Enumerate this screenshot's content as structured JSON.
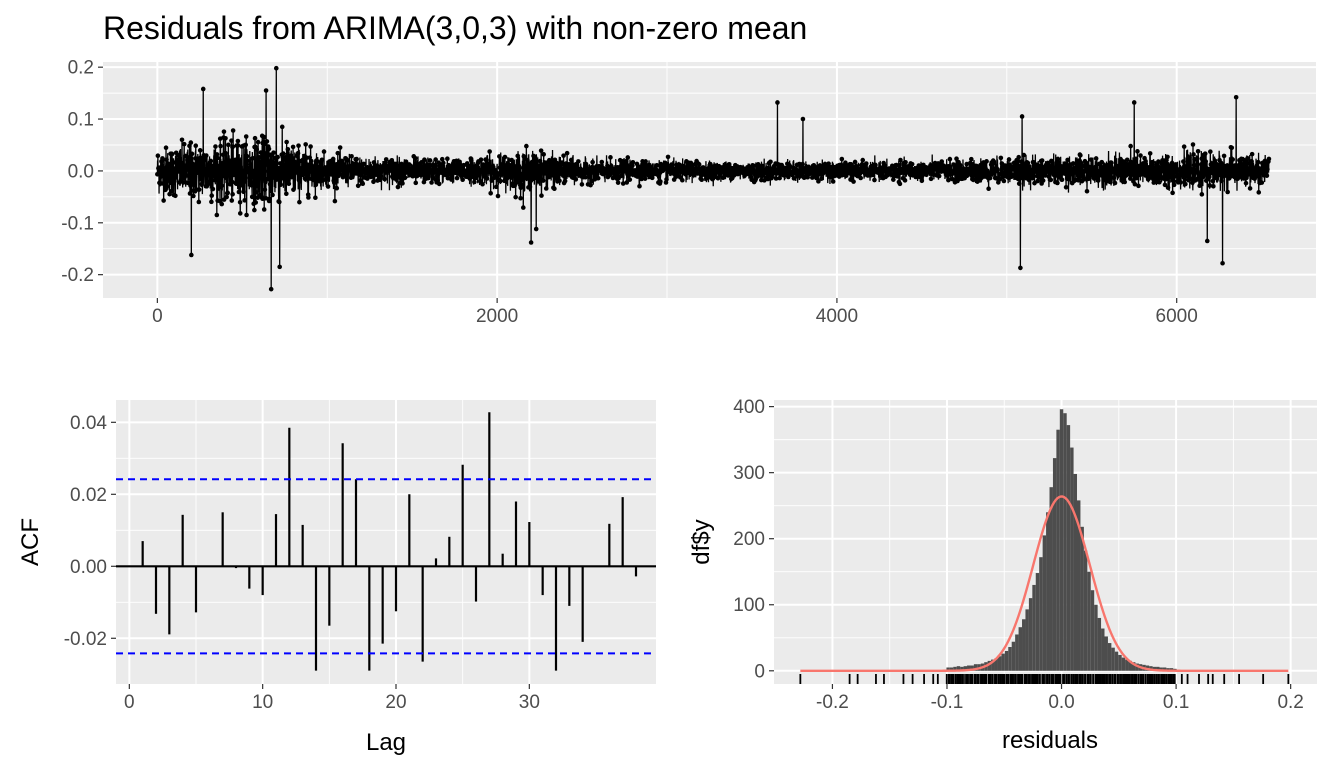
{
  "colors": {
    "panel_bg": "#ebebeb",
    "grid": "#ffffff",
    "series": "#000000",
    "ci_line": "#0000ff",
    "density_curve": "#f8766d",
    "histogram": "#4d4d4d"
  },
  "chart_data": [
    {
      "type": "line",
      "title": "Residuals from ARIMA(3,0,3) with non-zero mean",
      "xlabel": "",
      "ylabel": "",
      "xlim": [
        -320,
        6820
      ],
      "ylim": [
        -0.245,
        0.21
      ],
      "x_ticks": [
        0,
        2000,
        4000,
        6000
      ],
      "x_tick_labels": [
        "0",
        "2000",
        "4000",
        "6000"
      ],
      "y_ticks": [
        -0.2,
        -0.1,
        0.0,
        0.1,
        0.2
      ],
      "y_tick_labels": [
        "-0.2",
        "-0.1",
        "0.0",
        "0.1",
        "0.2"
      ],
      "n_obs": 6545,
      "points_markers": true,
      "volatility_envelope": [
        {
          "x": 0,
          "amp": 0.05
        },
        {
          "x": 300,
          "amp": 0.065
        },
        {
          "x": 700,
          "amp": 0.07
        },
        {
          "x": 1000,
          "amp": 0.035
        },
        {
          "x": 1800,
          "amp": 0.025
        },
        {
          "x": 2150,
          "amp": 0.045
        },
        {
          "x": 2500,
          "amp": 0.025
        },
        {
          "x": 3500,
          "amp": 0.02
        },
        {
          "x": 4500,
          "amp": 0.02
        },
        {
          "x": 5100,
          "amp": 0.03
        },
        {
          "x": 5800,
          "amp": 0.035
        },
        {
          "x": 6300,
          "amp": 0.04
        },
        {
          "x": 6545,
          "amp": 0.03
        }
      ],
      "notable_values": [
        {
          "x": 670,
          "y": -0.228
        },
        {
          "x": 700,
          "y": 0.198
        },
        {
          "x": 640,
          "y": 0.155
        },
        {
          "x": 720,
          "y": -0.185
        },
        {
          "x": 270,
          "y": 0.158
        },
        {
          "x": 200,
          "y": -0.162
        },
        {
          "x": 2200,
          "y": -0.138
        },
        {
          "x": 2230,
          "y": -0.112
        },
        {
          "x": 3650,
          "y": 0.132
        },
        {
          "x": 3800,
          "y": 0.1
        },
        {
          "x": 5080,
          "y": -0.187
        },
        {
          "x": 5090,
          "y": 0.105
        },
        {
          "x": 5750,
          "y": 0.132
        },
        {
          "x": 6270,
          "y": -0.178
        },
        {
          "x": 6350,
          "y": 0.142
        },
        {
          "x": 6180,
          "y": -0.135
        }
      ]
    },
    {
      "type": "bar",
      "subtype": "acf",
      "xlabel": "Lag",
      "ylabel": "ACF",
      "xlim": [
        -1,
        39.5
      ],
      "ylim": [
        -0.0327,
        0.0462
      ],
      "x_ticks": [
        0,
        10,
        20,
        30
      ],
      "x_tick_labels": [
        "0",
        "10",
        "20",
        "30"
      ],
      "y_ticks": [
        -0.02,
        0.0,
        0.02,
        0.04
      ],
      "y_tick_labels": [
        "-0.02",
        "0.00",
        "0.02",
        "0.04"
      ],
      "ci": 0.0242,
      "lags": [
        1,
        2,
        3,
        4,
        5,
        6,
        7,
        8,
        9,
        10,
        11,
        12,
        13,
        14,
        15,
        16,
        17,
        18,
        19,
        20,
        21,
        22,
        23,
        24,
        25,
        26,
        27,
        28,
        29,
        30,
        31,
        32,
        33,
        34,
        35,
        36,
        37,
        38
      ],
      "values": [
        0.007,
        -0.0132,
        -0.0189,
        0.0143,
        -0.0128,
        0.0002,
        0.015,
        -0.0005,
        -0.0062,
        -0.008,
        0.0145,
        0.0385,
        0.0115,
        -0.029,
        -0.0165,
        0.0342,
        0.0242,
        -0.029,
        -0.0215,
        -0.0125,
        0.02,
        -0.0265,
        0.0022,
        0.0082,
        0.0282,
        -0.0098,
        0.0428,
        0.0035,
        0.018,
        0.0123,
        -0.008,
        -0.029,
        -0.011,
        -0.021,
        0.0002,
        0.0118,
        0.0192,
        -0.0028
      ]
    },
    {
      "type": "bar",
      "subtype": "histogram",
      "xlabel": "residuals",
      "ylabel": "df$y",
      "xlim": [
        -0.251,
        0.223
      ],
      "ylim": [
        -20,
        410
      ],
      "x_ticks": [
        -0.2,
        -0.1,
        0.0,
        0.1,
        0.2
      ],
      "x_tick_labels": [
        "-0.2",
        "-0.1",
        "0.0",
        "0.1",
        "0.2"
      ],
      "y_ticks": [
        0,
        100,
        200,
        300,
        400
      ],
      "y_tick_labels": [
        "0",
        "100",
        "200",
        "300",
        "400"
      ],
      "bin_width": 0.003,
      "bins": [
        {
          "x": -0.099,
          "y": 5
        },
        {
          "x": -0.096,
          "y": 5
        },
        {
          "x": -0.093,
          "y": 6
        },
        {
          "x": -0.09,
          "y": 7
        },
        {
          "x": -0.087,
          "y": 6
        },
        {
          "x": -0.084,
          "y": 7
        },
        {
          "x": -0.081,
          "y": 8
        },
        {
          "x": -0.078,
          "y": 8
        },
        {
          "x": -0.075,
          "y": 10
        },
        {
          "x": -0.072,
          "y": 10
        },
        {
          "x": -0.069,
          "y": 11
        },
        {
          "x": -0.066,
          "y": 13
        },
        {
          "x": -0.063,
          "y": 15
        },
        {
          "x": -0.06,
          "y": 17
        },
        {
          "x": -0.057,
          "y": 19
        },
        {
          "x": -0.054,
          "y": 22
        },
        {
          "x": -0.051,
          "y": 26
        },
        {
          "x": -0.048,
          "y": 30
        },
        {
          "x": -0.045,
          "y": 36
        },
        {
          "x": -0.042,
          "y": 44
        },
        {
          "x": -0.039,
          "y": 55
        },
        {
          "x": -0.036,
          "y": 66
        },
        {
          "x": -0.033,
          "y": 78
        },
        {
          "x": -0.03,
          "y": 93
        },
        {
          "x": -0.027,
          "y": 110
        },
        {
          "x": -0.024,
          "y": 130
        },
        {
          "x": -0.021,
          "y": 148
        },
        {
          "x": -0.018,
          "y": 172
        },
        {
          "x": -0.015,
          "y": 205
        },
        {
          "x": -0.012,
          "y": 240
        },
        {
          "x": -0.009,
          "y": 278
        },
        {
          "x": -0.006,
          "y": 322
        },
        {
          "x": -0.003,
          "y": 365
        },
        {
          "x": 0.0,
          "y": 396
        },
        {
          "x": 0.003,
          "y": 390
        },
        {
          "x": 0.006,
          "y": 372
        },
        {
          "x": 0.009,
          "y": 338
        },
        {
          "x": 0.012,
          "y": 298
        },
        {
          "x": 0.015,
          "y": 258
        },
        {
          "x": 0.018,
          "y": 218
        },
        {
          "x": 0.021,
          "y": 182
        },
        {
          "x": 0.024,
          "y": 150
        },
        {
          "x": 0.027,
          "y": 122
        },
        {
          "x": 0.03,
          "y": 100
        },
        {
          "x": 0.033,
          "y": 80
        },
        {
          "x": 0.036,
          "y": 64
        },
        {
          "x": 0.039,
          "y": 52
        },
        {
          "x": 0.042,
          "y": 42
        },
        {
          "x": 0.045,
          "y": 35
        },
        {
          "x": 0.048,
          "y": 29
        },
        {
          "x": 0.051,
          "y": 24
        },
        {
          "x": 0.054,
          "y": 20
        },
        {
          "x": 0.057,
          "y": 17
        },
        {
          "x": 0.06,
          "y": 15
        },
        {
          "x": 0.063,
          "y": 13
        },
        {
          "x": 0.066,
          "y": 11
        },
        {
          "x": 0.069,
          "y": 10
        },
        {
          "x": 0.072,
          "y": 9
        },
        {
          "x": 0.075,
          "y": 8
        },
        {
          "x": 0.078,
          "y": 7
        },
        {
          "x": 0.081,
          "y": 6
        },
        {
          "x": 0.084,
          "y": 6
        },
        {
          "x": 0.087,
          "y": 5
        },
        {
          "x": 0.09,
          "y": 5
        },
        {
          "x": 0.093,
          "y": 4
        },
        {
          "x": 0.096,
          "y": 4
        },
        {
          "x": 0.099,
          "y": 3
        }
      ],
      "normal_curve": {
        "mean": 0.0,
        "sd": 0.0247,
        "scale": 16.5,
        "x_range": [
          -0.228,
          0.198
        ]
      },
      "rug": {
        "dense_range": [
          -0.1,
          0.1
        ],
        "outliers": [
          -0.228,
          -0.185,
          -0.178,
          -0.162,
          -0.155,
          -0.138,
          -0.13,
          -0.12,
          -0.112,
          -0.108,
          0.105,
          0.11,
          0.12,
          0.128,
          0.132,
          0.142,
          0.155,
          0.176,
          0.198
        ]
      }
    }
  ]
}
